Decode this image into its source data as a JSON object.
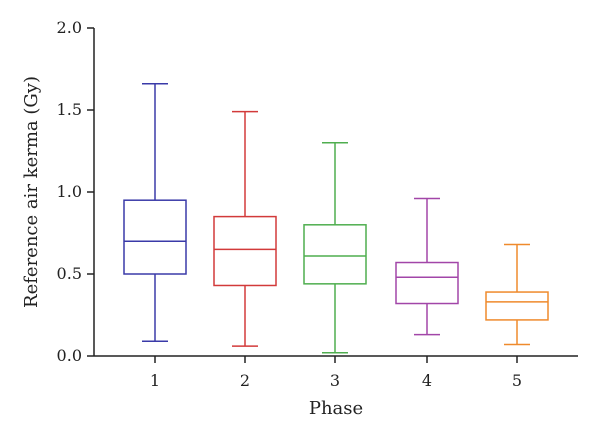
{
  "chart_data": {
    "type": "box",
    "xlabel": "Phase",
    "ylabel": "Reference air kerma (Gy)",
    "ylim": [
      0,
      2
    ],
    "y_ticks": [
      "0.0",
      "0.5",
      "1.0",
      "1.5",
      "2.0"
    ],
    "categories": [
      "1",
      "2",
      "3",
      "4",
      "5"
    ],
    "grid": false,
    "boxes": [
      {
        "category": "1",
        "min": 0.09,
        "q1": 0.5,
        "median": 0.7,
        "q3": 0.95,
        "max": 1.66,
        "color": "#3a3aa8"
      },
      {
        "category": "2",
        "min": 0.06,
        "q1": 0.43,
        "median": 0.65,
        "q3": 0.85,
        "max": 1.49,
        "color": "#d23a3a"
      },
      {
        "category": "3",
        "min": 0.02,
        "q1": 0.44,
        "median": 0.61,
        "q3": 0.8,
        "max": 1.3,
        "color": "#4fae4f"
      },
      {
        "category": "4",
        "min": 0.13,
        "q1": 0.32,
        "median": 0.48,
        "q3": 0.57,
        "max": 0.96,
        "color": "#a246a8"
      },
      {
        "category": "5",
        "min": 0.07,
        "q1": 0.22,
        "median": 0.33,
        "q3": 0.39,
        "max": 0.68,
        "color": "#ef8a2c"
      }
    ]
  }
}
